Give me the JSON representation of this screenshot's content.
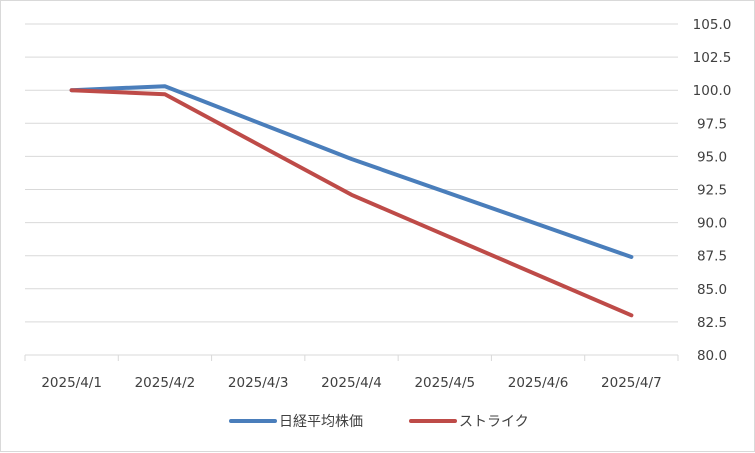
{
  "chart_data": {
    "type": "line",
    "title": "",
    "xlabel": "",
    "ylabel": "",
    "categories": [
      "2025/4/1",
      "2025/4/2",
      "2025/4/3",
      "2025/4/4",
      "2025/4/5",
      "2025/4/6",
      "2025/4/7"
    ],
    "ylim": [
      80.0,
      105.0
    ],
    "y_ticks": [
      "80.0",
      "82.5",
      "85.0",
      "87.5",
      "90.0",
      "92.5",
      "95.0",
      "97.5",
      "100.0",
      "102.5",
      "105.0"
    ],
    "y_axis_position": "right",
    "grid": true,
    "legend_position": "bottom",
    "series": [
      {
        "name": "日経平均株価",
        "color": "#4a7ebb",
        "values": [
          100.0,
          100.3,
          97.5,
          94.8,
          92.3,
          89.8,
          87.4
        ],
        "missing": [
          2,
          4,
          5
        ]
      },
      {
        "name": "ストライク",
        "color": "#be4b48",
        "values": [
          100.0,
          99.7,
          96.0,
          92.1,
          89.1,
          86.0,
          83.0
        ],
        "missing": [
          2,
          4,
          5
        ]
      }
    ]
  }
}
